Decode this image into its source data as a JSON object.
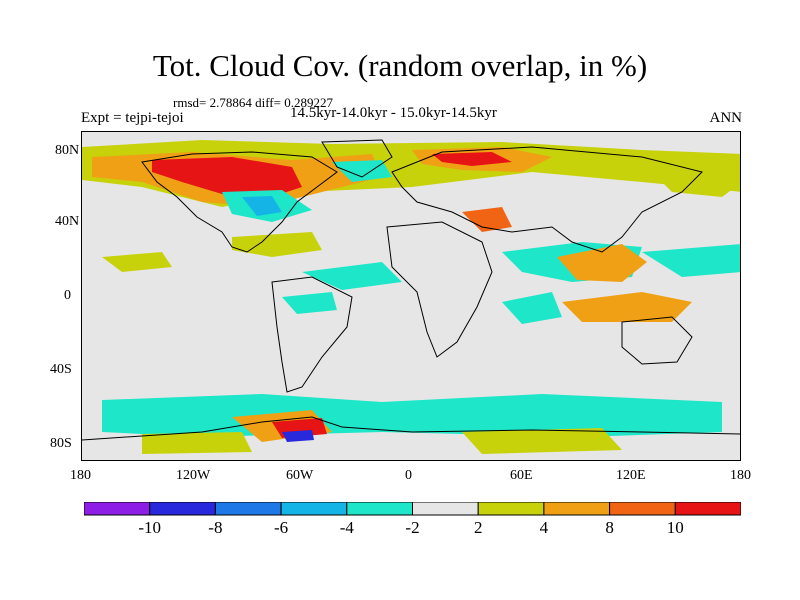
{
  "map": {
    "title": "Tot. Cloud Cov. (random overlap, in %)",
    "stats": "rmsd= 2.78864  diff= 0.289227",
    "expt": "Expt = tejpi-tejoi",
    "period": "14.5kyr-14.0kyr - 15.0kyr-14.5kyr",
    "season": "ANN",
    "lat_ticks": [
      "80N",
      "40N",
      "0",
      "40S",
      "80S"
    ],
    "lon_ticks": [
      "180",
      "120W",
      "60W",
      "0",
      "60E",
      "120E",
      "180"
    ],
    "background_color": "#e6e6e6"
  },
  "colorbar": {
    "colors": [
      "#8c1ee6",
      "#2828dc",
      "#1e78e6",
      "#14b4e6",
      "#1ee6c8",
      "#e6e6e6",
      "#c8d20a",
      "#f0a014",
      "#f06414",
      "#e61414"
    ],
    "labels": [
      "-10",
      "-8",
      "-6",
      "-4",
      "-2",
      "2",
      "4",
      "8",
      "10"
    ]
  }
}
